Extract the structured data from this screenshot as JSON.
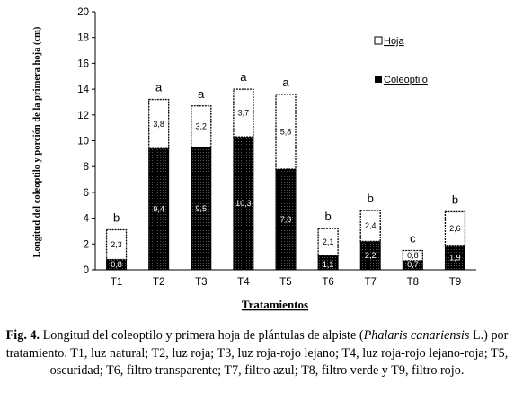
{
  "chart_data": {
    "type": "bar",
    "stacked": true,
    "categories": [
      "T1",
      "T2",
      "T3",
      "T4",
      "T5",
      "T6",
      "T7",
      "T8",
      "T9"
    ],
    "series": [
      {
        "name": "Coleoptilo",
        "values": [
          0.8,
          9.4,
          9.5,
          10.3,
          7.8,
          1.1,
          2.2,
          0.7,
          1.9
        ],
        "color": "#000000"
      },
      {
        "name": "Hoja",
        "values": [
          2.3,
          3.8,
          3.2,
          3.7,
          5.8,
          2.1,
          2.4,
          0.8,
          2.6
        ],
        "color": "#ffffff"
      }
    ],
    "data_labels": {
      "Coleoptilo": [
        "0,8",
        "9,4",
        "9,5",
        "10,3",
        "7,8",
        "1,1",
        "2,2",
        "0,7",
        "1,9"
      ],
      "Hoja": [
        "2,3",
        "3,8",
        "3,2",
        "3,7",
        "5,8",
        "2,1",
        "2,4",
        "0,8",
        "2,6"
      ]
    },
    "significance_letters": [
      "b",
      "a",
      "a",
      "a",
      "a",
      "b",
      "b",
      "c",
      "b"
    ],
    "ylim": [
      0,
      20
    ],
    "yticks": [
      0,
      2,
      4,
      6,
      8,
      10,
      12,
      14,
      16,
      18,
      20
    ],
    "xlabel": "Tratamientos",
    "ylabel": "Longitud del coleoptilo y porción de la primera hoja (cm)",
    "legend": {
      "position": "right",
      "entries": [
        "Hoja",
        "Coleoptilo"
      ]
    }
  },
  "caption": {
    "fig_label": "Fig. 4.",
    "text_before_italic": " Longitud del coleoptilo y primera hoja de plántulas de alpiste (",
    "italic": "Phalaris canariensis",
    "text_after_italic": " L.) por tratamiento. T1, luz natural; T2, luz roja; T3, luz roja-rojo lejano; T4, luz roja-rojo lejano-roja; T5, oscuridad; T6, filtro transparente; T7, filtro azul; T8, filtro verde y T9, filtro rojo."
  }
}
